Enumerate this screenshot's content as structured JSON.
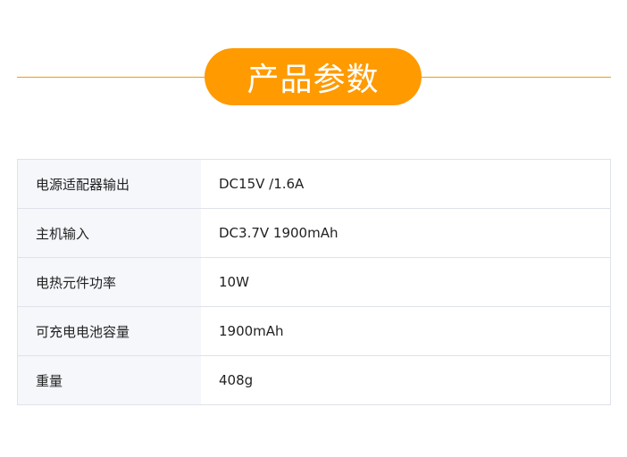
{
  "title": "产品参数",
  "colors": {
    "accent": "#ff9a00",
    "label_bg": "#f5f7fb",
    "border": "#dfe2ea"
  },
  "specs": [
    {
      "label": "电源适配器输出",
      "value": "DC15V /1.6A"
    },
    {
      "label": "主机输入",
      "value": "DC3.7V 1900mAh"
    },
    {
      "label": "电热元件功率",
      "value": "10W"
    },
    {
      "label": "可充电电池容量",
      "value": "1900mAh"
    },
    {
      "label": "重量",
      "value": "408g"
    }
  ]
}
